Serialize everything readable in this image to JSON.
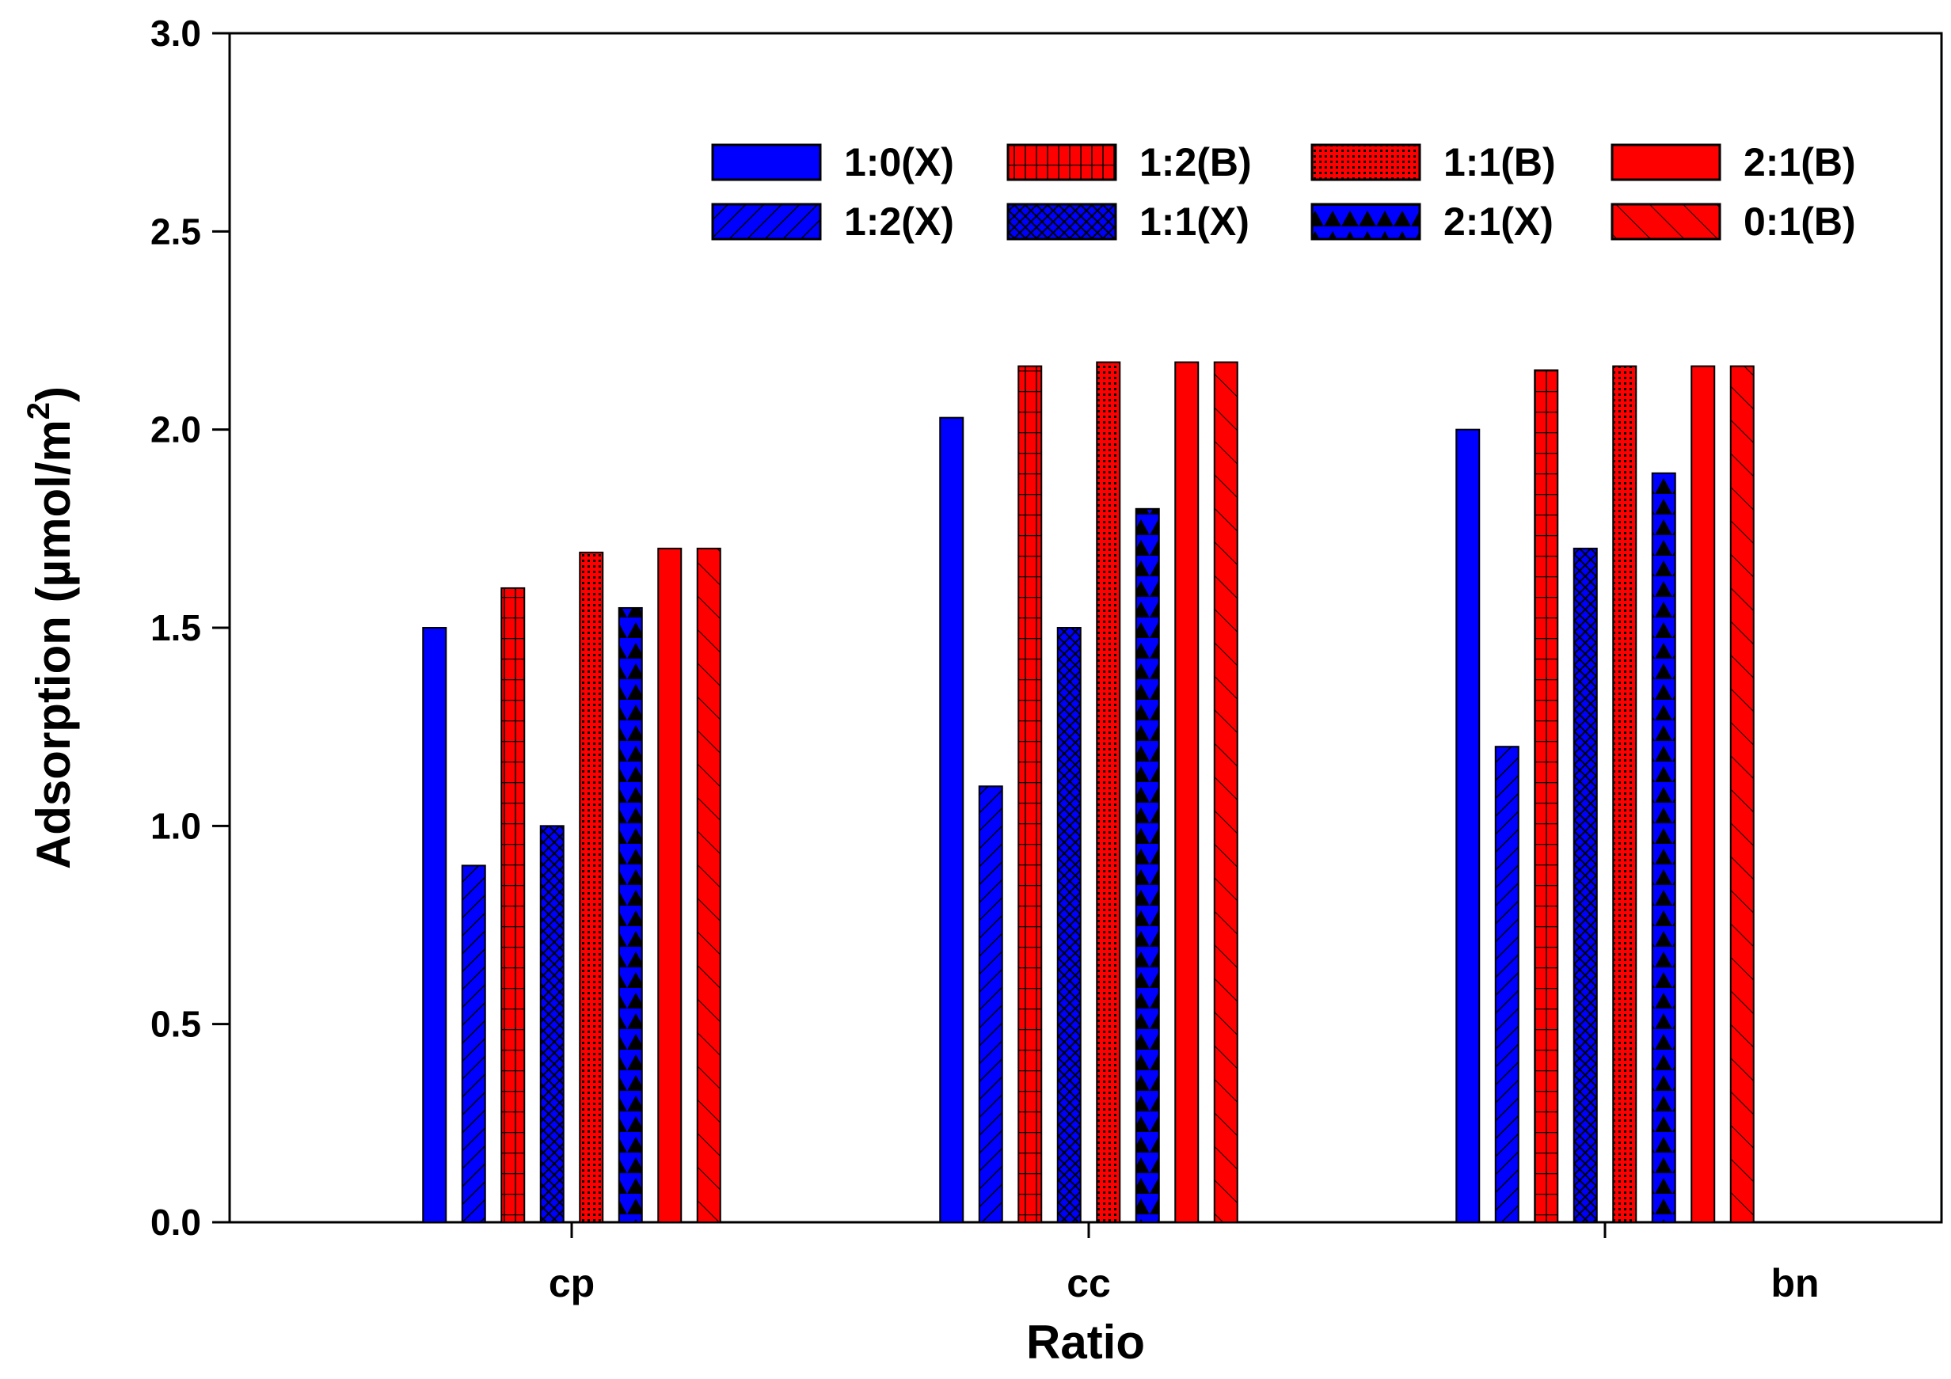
{
  "chart_data": {
    "type": "bar",
    "title": "",
    "xlabel": "Ratio",
    "ylabel_main": "Adsorption (µmol/m",
    "ylabel_sup": "2",
    "ylabel_close": ")",
    "ylim": [
      0,
      3.0
    ],
    "yticks": [
      "0.0",
      "0.5",
      "1.0",
      "1.5",
      "2.0",
      "2.5",
      "3.0"
    ],
    "categories": [
      "cp",
      "cc",
      "bn"
    ],
    "legend_position": "top-right",
    "series": [
      {
        "name": "1:0(X)",
        "color": "#0000ff",
        "pattern": "solid",
        "values": [
          1.5,
          2.03,
          2.0
        ]
      },
      {
        "name": "1:2(X)",
        "color": "#0000ff",
        "pattern": "diag",
        "values": [
          0.9,
          1.1,
          1.2
        ]
      },
      {
        "name": "1:2(B)",
        "color": "#ff0000",
        "pattern": "grid",
        "values": [
          1.6,
          2.16,
          2.15
        ]
      },
      {
        "name": "1:1(X)",
        "color": "#0000ff",
        "pattern": "cross",
        "values": [
          1.0,
          1.5,
          1.7
        ]
      },
      {
        "name": "1:1(B)",
        "color": "#ff0000",
        "pattern": "dots",
        "values": [
          1.69,
          2.17,
          2.16
        ]
      },
      {
        "name": "2:1(X)",
        "color": "#0000ff",
        "pattern": "scallop",
        "values": [
          1.55,
          1.8,
          1.89
        ]
      },
      {
        "name": "2:1(B)",
        "color": "#ff0000",
        "pattern": "solid",
        "values": [
          1.7,
          2.17,
          2.16
        ]
      },
      {
        "name": "0:1(B)",
        "color": "#ff0000",
        "pattern": "diag2",
        "values": [
          1.7,
          2.17,
          2.16
        ]
      }
    ],
    "legend_order": [
      "1:0(X)",
      "1:2(B)",
      "1:1(B)",
      "2:1(B)",
      "1:2(X)",
      "1:1(X)",
      "2:1(X)",
      "0:1(B)"
    ]
  }
}
